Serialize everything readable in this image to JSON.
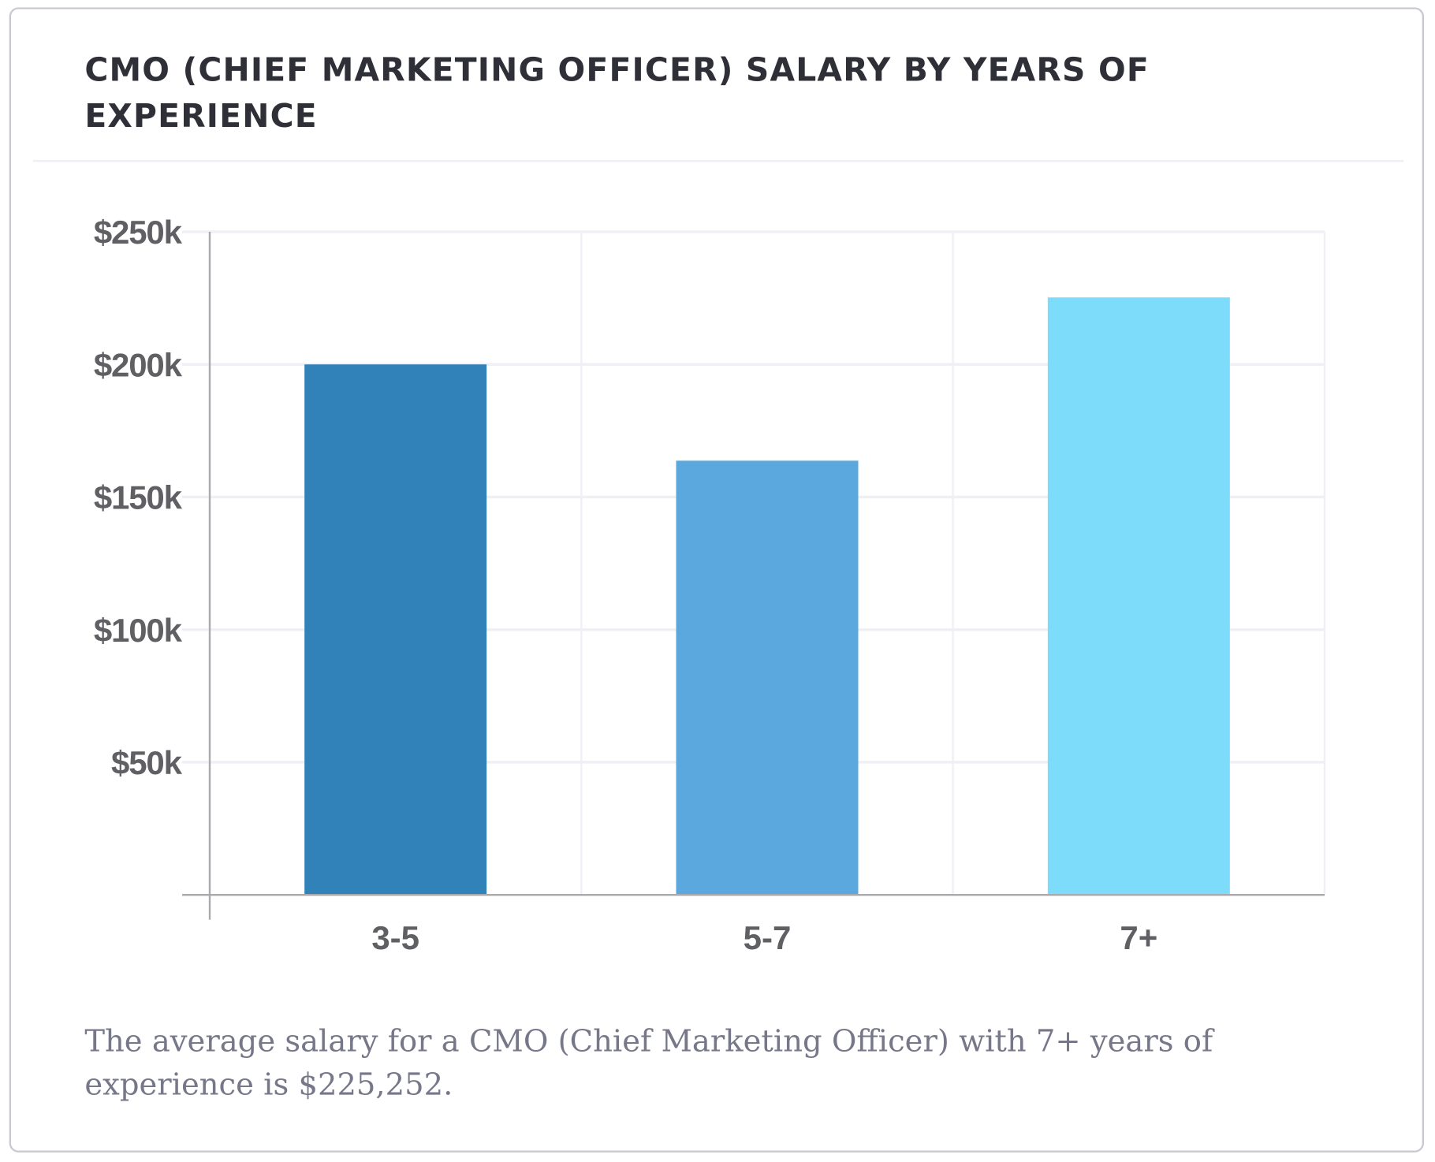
{
  "chart_data": {
    "type": "bar",
    "title": "CMO (CHIEF MARKETING OFFICER) SALARY BY YEARS OF EXPERIENCE",
    "categories": [
      "3-5",
      "5-7",
      "7+"
    ],
    "values": [
      200000,
      163700,
      225252
    ],
    "colors": [
      "#3282ba",
      "#5aa8de",
      "#7cdcf9"
    ],
    "yticks": [
      50000,
      100000,
      150000,
      200000,
      250000
    ],
    "ytick_labels": [
      "$50k",
      "$100k",
      "$150k",
      "$200k",
      "$250k"
    ],
    "ylim": [
      0,
      250000
    ],
    "grid": true,
    "xlabel": "",
    "ylabel": ""
  },
  "caption": "The average salary for a CMO (Chief Marketing Officer) with 7+ years of experience is $225,252."
}
